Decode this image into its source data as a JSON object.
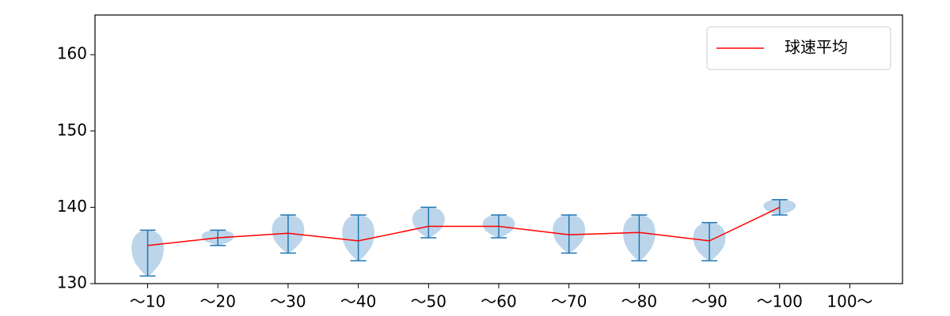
{
  "chart_data": {
    "type": "violin",
    "categories": [
      "～10",
      "～20",
      "～30",
      "～40",
      "～50",
      "～60",
      "～70",
      "～80",
      "～90",
      "～100",
      "100～"
    ],
    "violins": {
      "color": "#1f77b4",
      "fill": "#bcd5ea",
      "min": [
        131,
        135,
        134,
        133,
        136,
        136,
        134,
        133,
        133,
        139,
        null
      ],
      "max": [
        137,
        137,
        139,
        139,
        140,
        139,
        139,
        139,
        138,
        141,
        null
      ]
    },
    "series": [
      {
        "name": "球速平均",
        "color": "#ff0000",
        "values": [
          135,
          136,
          136.6,
          135.6,
          137.5,
          137.5,
          136.4,
          136.7,
          135.6,
          140,
          null
        ]
      }
    ],
    "xlim": [
      0.25,
      11.75
    ],
    "ylim": [
      130,
      165.2
    ],
    "yticks": [
      130,
      140,
      150,
      160
    ],
    "legend": "upper right"
  }
}
